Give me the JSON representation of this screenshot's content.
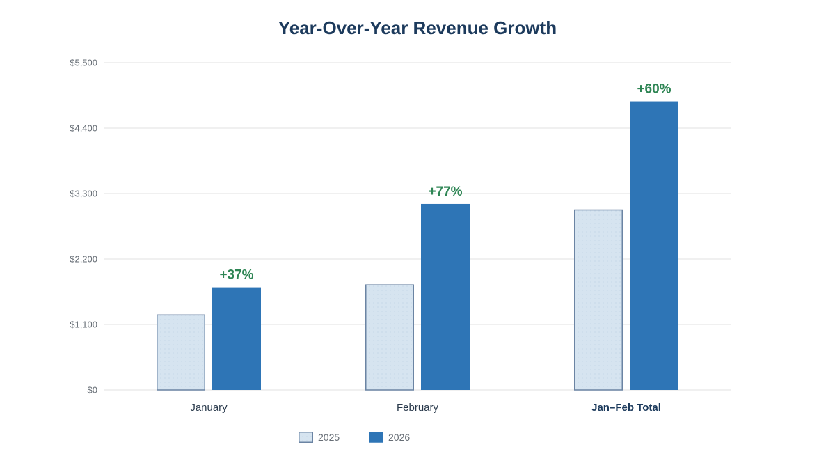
{
  "chart_data": {
    "type": "bar",
    "title": "Year-Over-Year Revenue Growth",
    "xlabel": "",
    "ylabel": "",
    "ylim": [
      0,
      5500
    ],
    "yticks": [
      0,
      1100,
      2200,
      3300,
      4400,
      5500
    ],
    "ytick_labels": [
      "$0",
      "$1,100",
      "$2,200",
      "$3,300",
      "$4,400",
      "$5,500"
    ],
    "grid": true,
    "categories": [
      "January",
      "February",
      "Jan–Feb Total"
    ],
    "bold_categories": [
      false,
      false,
      true
    ],
    "series": [
      {
        "name": "2025",
        "values": [
          1260,
          1765,
          3025
        ],
        "color": "#d6e4f0",
        "border": "#6b84a3"
      },
      {
        "name": "2026",
        "values": [
          1725,
          3125,
          4850
        ],
        "color": "#2e75b6",
        "border": "#2e75b6"
      }
    ],
    "annotations": [
      "+37%",
      "+77%",
      "+60%"
    ],
    "annotation_color": "#2e8554",
    "legend": {
      "position": "bottom-center",
      "entries": [
        "2025",
        "2026"
      ]
    }
  }
}
